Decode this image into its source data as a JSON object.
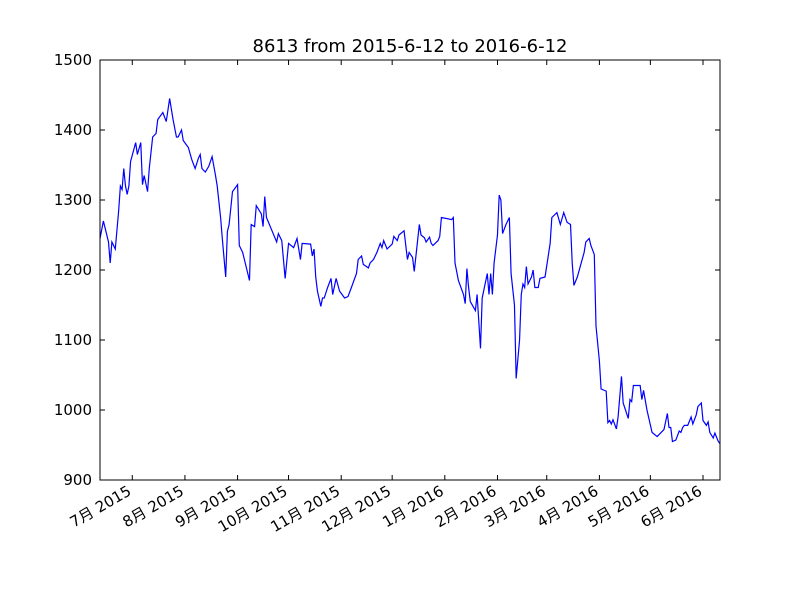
{
  "chart_data": {
    "type": "line",
    "title": "8613 from 2015-6-12 to 2016-6-12",
    "xlim": [
      "2015-06-12",
      "2016-06-11"
    ],
    "xticks": [
      {
        "value": "2015-07-01",
        "label": "7月 2015"
      },
      {
        "value": "2015-08-01",
        "label": "8月 2015"
      },
      {
        "value": "2015-09-01",
        "label": "9月 2015"
      },
      {
        "value": "2015-10-01",
        "label": "10月 2015"
      },
      {
        "value": "2015-11-01",
        "label": "11月 2015"
      },
      {
        "value": "2015-12-01",
        "label": "12月 2015"
      },
      {
        "value": "2016-01-01",
        "label": "1月 2016"
      },
      {
        "value": "2016-02-01",
        "label": "2月 2016"
      },
      {
        "value": "2016-03-01",
        "label": "3月 2016"
      },
      {
        "value": "2016-04-01",
        "label": "4月 2016"
      },
      {
        "value": "2016-05-01",
        "label": "5月 2016"
      },
      {
        "value": "2016-06-01",
        "label": "6月 2016"
      }
    ],
    "ylim": [
      900,
      1500
    ],
    "yticks": [
      900,
      1000,
      1100,
      1200,
      1300,
      1400,
      1500
    ],
    "x": [
      "2015-06-12",
      "2015-06-14",
      "2015-06-17",
      "2015-06-18",
      "2015-06-19",
      "2015-06-21",
      "2015-06-23",
      "2015-06-24",
      "2015-06-25",
      "2015-06-26",
      "2015-06-27",
      "2015-06-28",
      "2015-06-29",
      "2015-06-30",
      "2015-07-03",
      "2015-07-04",
      "2015-07-06",
      "2015-07-07",
      "2015-07-08",
      "2015-07-10",
      "2015-07-11",
      "2015-07-13",
      "2015-07-15",
      "2015-07-16",
      "2015-07-19",
      "2015-07-21",
      "2015-07-23",
      "2015-07-25",
      "2015-07-27",
      "2015-07-28",
      "2015-07-30",
      "2015-07-31",
      "2015-08-03",
      "2015-08-05",
      "2015-08-07",
      "2015-08-09",
      "2015-08-10",
      "2015-08-11",
      "2015-08-13",
      "2015-08-15",
      "2015-08-17",
      "2015-08-19",
      "2015-08-20",
      "2015-08-22",
      "2015-08-23",
      "2015-08-25",
      "2015-08-26",
      "2015-08-27",
      "2015-08-29",
      "2015-09-01",
      "2015-09-02",
      "2015-09-04",
      "2015-09-06",
      "2015-09-08",
      "2015-09-09",
      "2015-09-11",
      "2015-09-12",
      "2015-09-15",
      "2015-09-16",
      "2015-09-17",
      "2015-09-18",
      "2015-09-24",
      "2015-09-25",
      "2015-09-27",
      "2015-09-29",
      "2015-10-01",
      "2015-10-04",
      "2015-10-06",
      "2015-10-08",
      "2015-10-09",
      "2015-10-14",
      "2015-10-15",
      "2015-10-16",
      "2015-10-17",
      "2015-10-18",
      "2015-10-20",
      "2015-10-21",
      "2015-10-22",
      "2015-10-24",
      "2015-10-26",
      "2015-10-27",
      "2015-10-29",
      "2015-10-31",
      "2015-11-03",
      "2015-11-05",
      "2015-11-07",
      "2015-11-10",
      "2015-11-11",
      "2015-11-13",
      "2015-11-14",
      "2015-11-17",
      "2015-11-18",
      "2015-11-20",
      "2015-11-22",
      "2015-11-24",
      "2015-11-25",
      "2015-11-26",
      "2015-11-28",
      "2015-12-01",
      "2015-12-02",
      "2015-12-04",
      "2015-12-05",
      "2015-12-08",
      "2015-12-10",
      "2015-12-11",
      "2015-12-13",
      "2015-12-14",
      "2015-12-17",
      "2015-12-18",
      "2015-12-20",
      "2015-12-21",
      "2015-12-23",
      "2015-12-24",
      "2015-12-25",
      "2015-12-28",
      "2015-12-29",
      "2015-12-30",
      "2016-01-05",
      "2016-01-06",
      "2016-01-07",
      "2016-01-09",
      "2016-01-12",
      "2016-01-13",
      "2016-01-14",
      "2016-01-15",
      "2016-01-16",
      "2016-01-19",
      "2016-01-20",
      "2016-01-22",
      "2016-01-23",
      "2016-01-26",
      "2016-01-27",
      "2016-01-28",
      "2016-01-29",
      "2016-01-30",
      "2016-02-01",
      "2016-02-02",
      "2016-02-03",
      "2016-02-04",
      "2016-02-06",
      "2016-02-08",
      "2016-02-09",
      "2016-02-11",
      "2016-02-12",
      "2016-02-14",
      "2016-02-15",
      "2016-02-16",
      "2016-02-17",
      "2016-02-18",
      "2016-02-19",
      "2016-02-21",
      "2016-02-22",
      "2016-02-23",
      "2016-02-25",
      "2016-02-26",
      "2016-02-29",
      "2016-03-03",
      "2016-03-04",
      "2016-03-07",
      "2016-03-09",
      "2016-03-11",
      "2016-03-13",
      "2016-03-15",
      "2016-03-16",
      "2016-03-17",
      "2016-03-19",
      "2016-03-23",
      "2016-03-24",
      "2016-03-26",
      "2016-03-27",
      "2016-03-29",
      "2016-03-30",
      "2016-04-01",
      "2016-04-02",
      "2016-04-05",
      "2016-04-06",
      "2016-04-07",
      "2016-04-08",
      "2016-04-09",
      "2016-04-11",
      "2016-04-12",
      "2016-04-14",
      "2016-04-15",
      "2016-04-18",
      "2016-04-19",
      "2016-04-20",
      "2016-04-21",
      "2016-04-25",
      "2016-04-26",
      "2016-04-27",
      "2016-04-29",
      "2016-05-02",
      "2016-05-05",
      "2016-05-09",
      "2016-05-11",
      "2016-05-12",
      "2016-05-13",
      "2016-05-14",
      "2016-05-16",
      "2016-05-18",
      "2016-05-19",
      "2016-05-20",
      "2016-05-21",
      "2016-05-23",
      "2016-05-25",
      "2016-05-26",
      "2016-05-28",
      "2016-05-29",
      "2016-05-31",
      "2016-06-01",
      "2016-06-03",
      "2016-06-04",
      "2016-06-05",
      "2016-06-07",
      "2016-06-08",
      "2016-06-10",
      "2016-06-11"
    ],
    "series": [
      {
        "color": "#0000ff",
        "values": [
          1245,
          1270,
          1240,
          1210,
          1240,
          1230,
          1285,
          1320,
          1315,
          1345,
          1320,
          1308,
          1320,
          1355,
          1382,
          1365,
          1382,
          1322,
          1335,
          1312,
          1345,
          1390,
          1395,
          1415,
          1425,
          1412,
          1445,
          1415,
          1390,
          1390,
          1400,
          1385,
          1375,
          1358,
          1345,
          1360,
          1365,
          1345,
          1340,
          1348,
          1362,
          1335,
          1320,
          1275,
          1245,
          1190,
          1255,
          1265,
          1312,
          1322,
          1235,
          1225,
          1205,
          1185,
          1265,
          1262,
          1292,
          1280,
          1262,
          1305,
          1275,
          1240,
          1252,
          1242,
          1188,
          1238,
          1232,
          1245,
          1215,
          1238,
          1237,
          1220,
          1230,
          1190,
          1170,
          1148,
          1160,
          1160,
          1175,
          1188,
          1165,
          1188,
          1170,
          1160,
          1162,
          1175,
          1195,
          1215,
          1220,
          1208,
          1203,
          1210,
          1215,
          1225,
          1238,
          1232,
          1242,
          1230,
          1237,
          1248,
          1242,
          1250,
          1256,
          1215,
          1225,
          1218,
          1198,
          1265,
          1250,
          1246,
          1240,
          1247,
          1238,
          1235,
          1242,
          1248,
          1275,
          1272,
          1275,
          1210,
          1185,
          1165,
          1152,
          1202,
          1175,
          1155,
          1142,
          1165,
          1088,
          1160,
          1195,
          1165,
          1195,
          1165,
          1210,
          1250,
          1307,
          1300,
          1252,
          1265,
          1275,
          1195,
          1150,
          1045,
          1100,
          1165,
          1180,
          1175,
          1205,
          1180,
          1190,
          1200,
          1175,
          1175,
          1188,
          1190,
          1238,
          1275,
          1282,
          1265,
          1282,
          1268,
          1265,
          1210,
          1178,
          1190,
          1225,
          1240,
          1245,
          1235,
          1222,
          1120,
          1070,
          1030,
          1027,
          982,
          985,
          980,
          986,
          973,
          990,
          1048,
          1010,
          988,
          1015,
          1012,
          1035,
          1035,
          1015,
          1028,
          1000,
          968,
          962,
          972,
          995,
          975,
          975,
          955,
          957,
          970,
          968,
          975,
          978,
          978,
          990,
          980,
          993,
          1005,
          1010,
          985,
          978,
          983,
          968,
          960,
          967,
          955,
          952
        ]
      }
    ]
  }
}
